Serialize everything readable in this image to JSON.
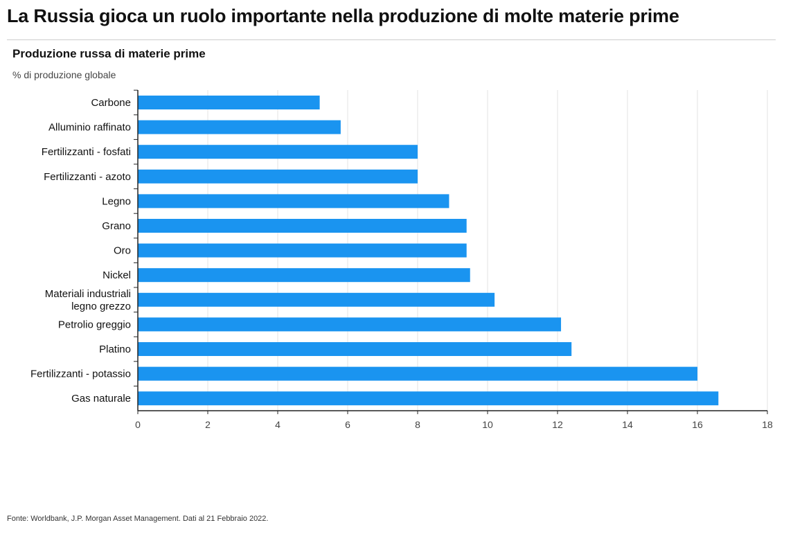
{
  "header": {
    "title": "La Russia gioca un ruolo importante nella produzione di molte materie prime",
    "subtitle": "Produzione russa di materie prime",
    "unit": "% di produzione globale"
  },
  "footer": {
    "source": "Fonte: Worldbank, J.P. Morgan Asset Management. Dati al 21 Febbraio 2022."
  },
  "chart_data": {
    "type": "bar",
    "orientation": "horizontal",
    "title": "Produzione russa di materie prime",
    "xlabel": "% di produzione globale",
    "ylabel": "",
    "bar_color": "#1a94f0",
    "xlim": [
      0,
      18
    ],
    "xticks": [
      0,
      2,
      4,
      6,
      8,
      10,
      12,
      14,
      16,
      18
    ],
    "grid": "vertical",
    "categories": [
      [
        "Carbone"
      ],
      [
        "Alluminio raffinato"
      ],
      [
        "Fertilizzanti - fosfati"
      ],
      [
        "Fertilizzanti - azoto"
      ],
      [
        "Legno"
      ],
      [
        "Grano"
      ],
      [
        "Oro"
      ],
      [
        "Nickel"
      ],
      [
        "Materiali industriali",
        "legno grezzo"
      ],
      [
        "Petrolio greggio"
      ],
      [
        "Platino"
      ],
      [
        "Fertilizzanti - potassio"
      ],
      [
        "Gas naturale"
      ]
    ],
    "values": [
      5.2,
      5.8,
      8.0,
      8.0,
      8.9,
      9.4,
      9.4,
      9.5,
      10.2,
      12.1,
      12.4,
      16.0,
      16.6
    ]
  }
}
